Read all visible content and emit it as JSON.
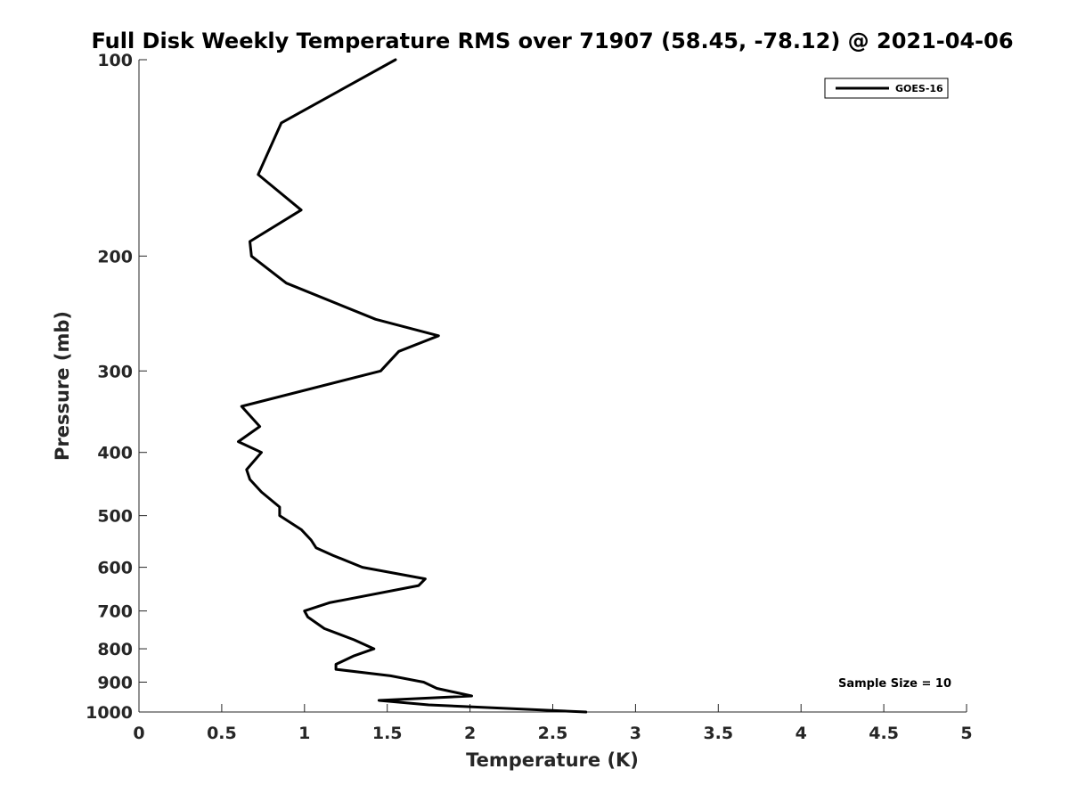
{
  "chart_data": {
    "type": "line",
    "title": "Full Disk Weekly Temperature RMS over 71907 (58.45, -78.12) @ 2021-04-06",
    "xlabel": "Temperature (K)",
    "ylabel": "Pressure (mb)",
    "xlim": [
      0,
      5
    ],
    "ylim": [
      1000,
      100
    ],
    "yscale": "log",
    "y_reversed": true,
    "x_ticks": [
      "0",
      "0.5",
      "1",
      "1.5",
      "2",
      "2.5",
      "3",
      "3.5",
      "4",
      "4.5",
      "5"
    ],
    "y_ticks": [
      "100",
      "200",
      "300",
      "400",
      "500",
      "600",
      "700",
      "800",
      "900",
      "1000"
    ],
    "grid": false,
    "legend_position": "top-right",
    "annotation": "Sample Size = 10",
    "series": [
      {
        "name": "GOES-16",
        "color": "#000000",
        "points": [
          [
            1.55,
            100
          ],
          [
            0.86,
            125
          ],
          [
            0.72,
            150
          ],
          [
            0.98,
            170
          ],
          [
            0.67,
            190
          ],
          [
            0.68,
            200
          ],
          [
            0.89,
            220
          ],
          [
            1.43,
            250
          ],
          [
            1.81,
            265
          ],
          [
            1.57,
            280
          ],
          [
            1.46,
            300
          ],
          [
            0.62,
            340
          ],
          [
            0.73,
            365
          ],
          [
            0.6,
            385
          ],
          [
            0.74,
            400
          ],
          [
            0.65,
            425
          ],
          [
            0.67,
            440
          ],
          [
            0.74,
            460
          ],
          [
            0.85,
            485
          ],
          [
            0.85,
            500
          ],
          [
            0.98,
            525
          ],
          [
            1.04,
            545
          ],
          [
            1.07,
            560
          ],
          [
            1.17,
            575
          ],
          [
            1.35,
            600
          ],
          [
            1.73,
            625
          ],
          [
            1.69,
            640
          ],
          [
            1.15,
            680
          ],
          [
            1.0,
            700
          ],
          [
            1.02,
            715
          ],
          [
            1.12,
            745
          ],
          [
            1.3,
            775
          ],
          [
            1.42,
            800
          ],
          [
            1.3,
            820
          ],
          [
            1.19,
            845
          ],
          [
            1.19,
            860
          ],
          [
            1.52,
            880
          ],
          [
            1.72,
            900
          ],
          [
            1.8,
            920
          ],
          [
            2.01,
            945
          ],
          [
            1.45,
            960
          ],
          [
            1.75,
            975
          ],
          [
            2.7,
            1000
          ]
        ]
      }
    ]
  }
}
